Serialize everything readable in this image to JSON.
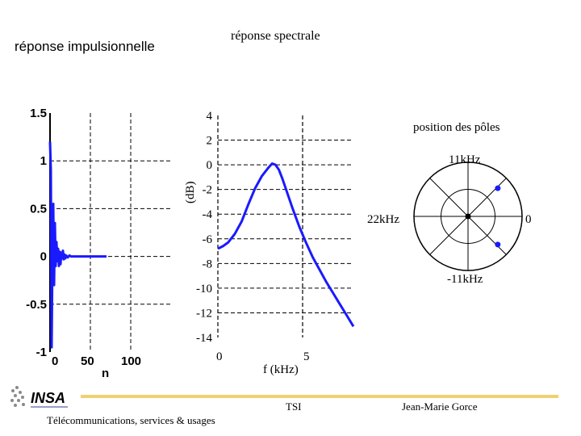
{
  "slide": {
    "title_left": "réponse impulsionnelle",
    "title_right": "réponse spectrale",
    "footer": {
      "org": "Télécommunications, services & usages",
      "dept": "TSI",
      "author": "Jean-Marie Gorce",
      "logo_text": "INSA"
    },
    "colors": {
      "curve": "#1a1aff",
      "grid": "#000000",
      "accent_line": "#f0d070"
    }
  },
  "chart_data": [
    {
      "type": "line",
      "title": "réponse impulsionnelle",
      "xlabel": "n",
      "ylabel": "",
      "xlim": [
        0,
        150
      ],
      "ylim": [
        -1,
        1.5
      ],
      "xticks": [
        0,
        50,
        100
      ],
      "xtick_labels": [
        "0",
        "50",
        "100"
      ],
      "yticks": [
        1.5,
        1,
        0.5,
        0,
        -0.5,
        -1
      ],
      "ytick_labels": [
        "1.5",
        "1",
        "0.5",
        "0",
        "-0.5",
        "-1"
      ],
      "grid": true,
      "series": [
        {
          "x": [
            0,
            1,
            2,
            3,
            4,
            5,
            6,
            7,
            8,
            9,
            10,
            11,
            12,
            13,
            14,
            15,
            16,
            17,
            18,
            19,
            20,
            22,
            24,
            26,
            28,
            30,
            35,
            40,
            50,
            60,
            70
          ],
          "y": [
            1.2,
            0.9,
            -0.95,
            0.05,
            0.55,
            -0.3,
            0.35,
            -0.1,
            0.15,
            -0.05,
            0.08,
            -0.1,
            0.05,
            -0.08,
            0.04,
            -0.02,
            0.06,
            -0.03,
            0.02,
            -0.02,
            0.01,
            -0.01,
            0.01,
            0.0,
            0.0,
            0.0,
            0.0,
            0.0,
            0.0,
            0.0,
            0.0
          ]
        }
      ]
    },
    {
      "type": "line",
      "title": "réponse spectrale",
      "xlabel": "f (kHz)",
      "ylabel": "(dB)",
      "xlim": [
        0,
        8
      ],
      "ylim": [
        -14,
        4
      ],
      "xticks": [
        0,
        5
      ],
      "xtick_labels": [
        "0",
        "5"
      ],
      "yticks": [
        4,
        2,
        0,
        -2,
        -4,
        -6,
        -8,
        -10,
        -12,
        -14
      ],
      "ytick_labels": [
        "4",
        "2",
        "0",
        "-2",
        "-4",
        "-6",
        "-8",
        "-10",
        "-12",
        "-14"
      ],
      "grid": true,
      "series": [
        {
          "x": [
            0.0,
            0.3,
            0.6,
            1.0,
            1.4,
            1.8,
            2.2,
            2.6,
            3.0,
            3.2,
            3.4,
            3.6,
            3.8,
            4.0,
            4.4,
            4.8,
            5.2,
            5.6,
            6.0,
            6.4,
            6.8,
            7.2,
            7.6,
            8.0
          ],
          "y": [
            -6.8,
            -6.6,
            -6.3,
            -5.6,
            -4.6,
            -3.2,
            -1.9,
            -0.9,
            -0.2,
            0.1,
            0.0,
            -0.4,
            -1.1,
            -1.9,
            -3.5,
            -5.0,
            -6.3,
            -7.5,
            -8.5,
            -9.5,
            -10.4,
            -11.3,
            -12.2,
            -13.1
          ]
        }
      ]
    },
    {
      "type": "scatter",
      "title": "position des pôles",
      "labels": {
        "top": "11kHz",
        "left": "22kHz",
        "right": "0",
        "bottom": "-11kHz"
      },
      "points": [
        {
          "name": "pole",
          "re": 0.55,
          "im": 0.52
        },
        {
          "name": "pole-conjugate",
          "re": 0.55,
          "im": -0.52
        }
      ],
      "zero": {
        "re": 0,
        "im": 0
      },
      "radial_lines": 8,
      "inner_circle_ratio": 0.5
    }
  ]
}
